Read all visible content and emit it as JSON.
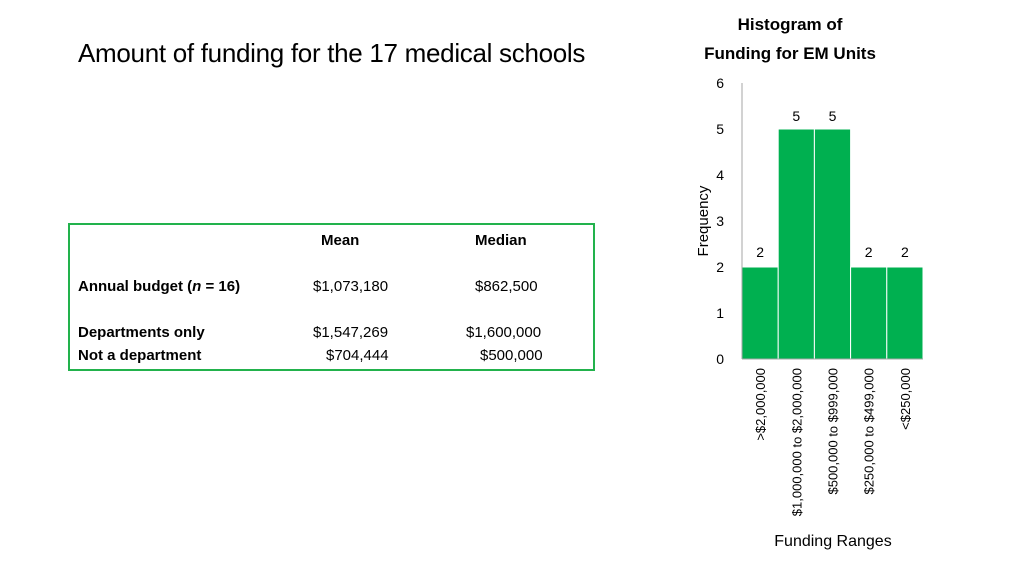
{
  "page": {
    "title": "Amount of funding for the 17 medical schools"
  },
  "stats_table": {
    "headers": {
      "mean": "Mean",
      "median": "Median"
    },
    "rows": [
      {
        "label": "Annual budget (",
        "label_italic": "n",
        "label_suffix": " = 16)",
        "mean": "$1,073,180",
        "median": "$862,500"
      },
      {
        "label": "Departments only",
        "mean": "$1,547,269",
        "median": "$1,600,000"
      },
      {
        "label": "Not a department",
        "mean": "$704,444",
        "median": "$500,000"
      }
    ]
  },
  "chart_data": {
    "type": "bar",
    "title_line1": "Histogram of",
    "title_line2": "Funding for EM Units",
    "xlabel": "Funding Ranges",
    "ylabel": "Frequency",
    "categories": [
      ">$2,000,000",
      "$1,000,000 to $2,000,000",
      "$500,000 to $999,000",
      "$250,000 to $499,000",
      "<$250,000"
    ],
    "values": [
      2,
      5,
      5,
      2,
      2
    ],
    "data_labels": [
      "2",
      "5",
      "5",
      "2",
      "2"
    ],
    "ylim": [
      0,
      6
    ],
    "yticks": [
      0,
      1,
      2,
      3,
      4,
      5,
      6
    ],
    "bar_color": "#00b050",
    "grid": false
  }
}
